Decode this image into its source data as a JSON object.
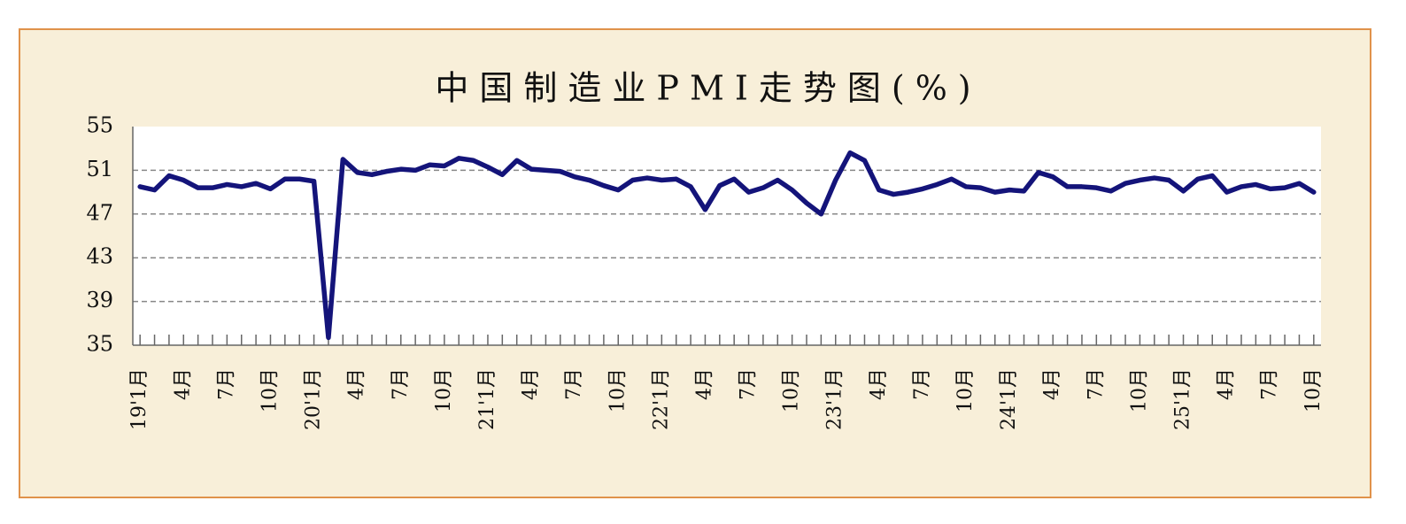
{
  "chart_data": {
    "type": "line",
    "title": "中国制造业PMI走势图(%)",
    "categories": [
      "19'1月",
      null,
      null,
      "4月",
      null,
      null,
      "7月",
      null,
      null,
      "10月",
      null,
      null,
      "20'1月",
      null,
      null,
      "4月",
      null,
      null,
      "7月",
      null,
      null,
      "10月",
      null,
      null,
      "21'1月",
      null,
      null,
      "4月",
      null,
      null,
      "7月",
      null,
      null,
      "10月",
      null,
      null,
      "22'1月",
      null,
      null,
      "4月",
      null,
      null,
      "7月",
      null,
      null,
      "10月",
      null,
      null,
      "23'1月",
      null,
      null,
      "4月",
      null,
      null,
      "7月",
      null,
      null,
      "10月",
      null,
      null,
      "24'1月",
      null,
      null,
      "4月",
      null,
      null,
      "7月",
      null,
      null,
      "10月",
      null,
      null,
      "25'1月",
      null,
      null,
      "4月",
      null,
      null,
      "7月",
      null,
      null,
      "10月"
    ],
    "values": [
      49.5,
      49.2,
      50.5,
      50.1,
      49.4,
      49.4,
      49.7,
      49.5,
      49.8,
      49.3,
      50.2,
      50.2,
      50.0,
      35.7,
      52.0,
      50.8,
      50.6,
      50.9,
      51.1,
      51.0,
      51.5,
      51.4,
      52.1,
      51.9,
      51.3,
      50.6,
      51.9,
      51.1,
      51.0,
      50.9,
      50.4,
      50.1,
      49.6,
      49.2,
      50.1,
      50.3,
      50.1,
      50.2,
      49.5,
      47.4,
      49.6,
      50.2,
      49.0,
      49.4,
      50.1,
      49.2,
      48.0,
      47.0,
      50.1,
      52.6,
      51.9,
      49.2,
      48.8,
      49.0,
      49.3,
      49.7,
      50.2,
      49.5,
      49.4,
      49.0,
      49.2,
      49.1,
      50.8,
      50.4,
      49.5,
      49.5,
      49.4,
      49.1,
      49.8,
      50.1,
      50.3,
      50.1,
      49.1,
      50.2,
      50.5,
      49.0,
      49.5,
      49.7,
      49.3,
      49.4,
      49.8,
      49.0
    ],
    "color": "#14147a",
    "ylim": [
      35,
      55
    ],
    "yticks": [
      35,
      39,
      43,
      47,
      51,
      55
    ],
    "grid": true
  }
}
